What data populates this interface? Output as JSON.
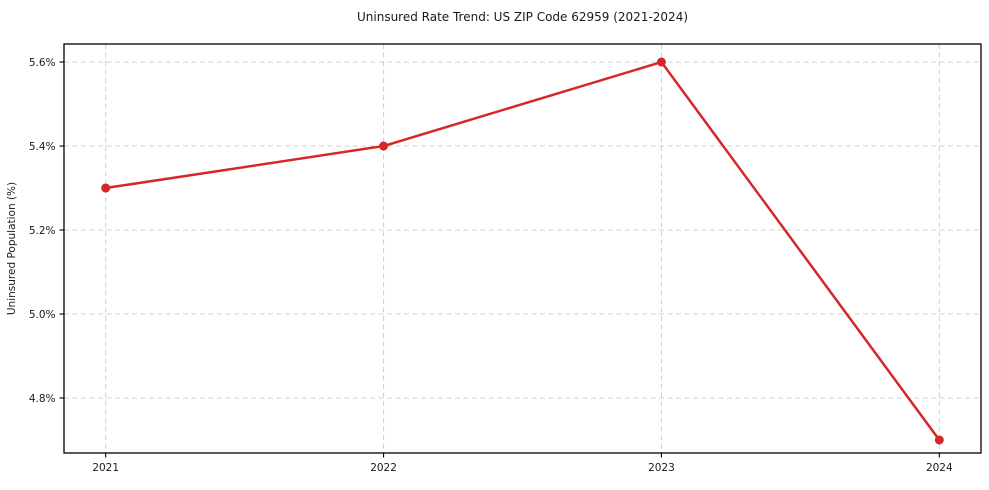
{
  "chart_data": {
    "type": "line",
    "title": "Uninsured Rate Trend: US ZIP Code 62959 (2021-2024)",
    "xlabel": "",
    "ylabel": "Uninsured Population (%)",
    "x": [
      2021,
      2022,
      2023,
      2024
    ],
    "values": [
      5.3,
      5.4,
      5.6,
      4.7
    ],
    "xtick_labels": [
      "2021",
      "2022",
      "2023",
      "2024"
    ],
    "yticks": [
      4.8,
      5.0,
      5.2,
      5.4,
      5.6
    ],
    "ytick_labels": [
      "4.8%",
      "5.0%",
      "5.2%",
      "5.4%",
      "5.6%"
    ],
    "xlim": [
      2020.85,
      2024.15
    ],
    "ylim": [
      4.669,
      5.643
    ],
    "grid": true,
    "legend": "none",
    "line_color": "#d62728",
    "grid_color": "#d0d0d0",
    "marker": "circle",
    "marker_radius": 4.5,
    "line_width": 2.5
  }
}
